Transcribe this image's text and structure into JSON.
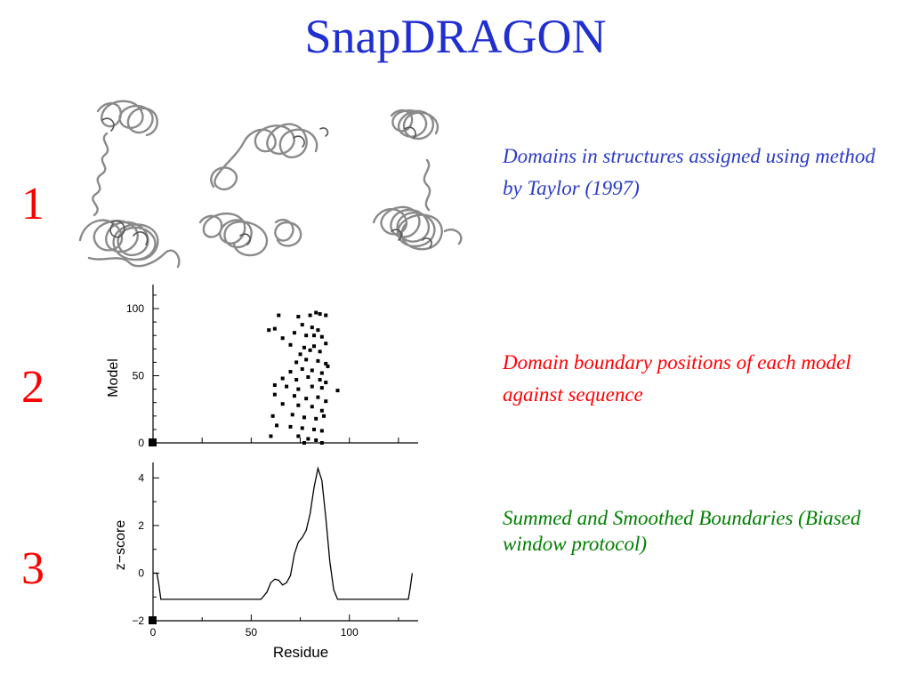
{
  "slide": {
    "title": "SnapDRAGON",
    "panel_numbers": [
      "1",
      "2",
      "3"
    ],
    "captions": {
      "structures": "Domains in structures assigned using method by Taylor (1997)",
      "boundaries": "Domain boundary positions of each model against sequence",
      "smoothed": "Summed and Smoothed Boundaries (Biased window protocol)"
    },
    "colors": {
      "title": "#1f2fd0",
      "numbers": "#ff0000",
      "caption1": "#2a3bc7",
      "caption2": "#ff0000",
      "caption3": "#008000"
    }
  },
  "chart_data": [
    {
      "type": "scatter",
      "title": "",
      "xlabel": "",
      "ylabel": "Model",
      "xlim": [
        0,
        135
      ],
      "ylim": [
        0,
        100
      ],
      "x_ticks": [
        0,
        25,
        50,
        75,
        100,
        125
      ],
      "y_ticks": [
        0,
        50,
        100
      ],
      "y_tick_labels": [
        "0",
        "50",
        "100"
      ],
      "points": [
        [
          59,
          84
        ],
        [
          64,
          95
        ],
        [
          62,
          85
        ],
        [
          74,
          94
        ],
        [
          66,
          78
        ],
        [
          80,
          95
        ],
        [
          83,
          97
        ],
        [
          85,
          96
        ],
        [
          88,
          95
        ],
        [
          76,
          88
        ],
        [
          81,
          86
        ],
        [
          72,
          82
        ],
        [
          78,
          80
        ],
        [
          82,
          80
        ],
        [
          86,
          79
        ],
        [
          84,
          84
        ],
        [
          70,
          73
        ],
        [
          77,
          71
        ],
        [
          82,
          72
        ],
        [
          88,
          74
        ],
        [
          75,
          66
        ],
        [
          80,
          69
        ],
        [
          85,
          68
        ],
        [
          73,
          60
        ],
        [
          78,
          62
        ],
        [
          84,
          61
        ],
        [
          88,
          59
        ],
        [
          70,
          53
        ],
        [
          76,
          55
        ],
        [
          81,
          54
        ],
        [
          86,
          52
        ],
        [
          89,
          57
        ],
        [
          66,
          48
        ],
        [
          73,
          47
        ],
        [
          79,
          49
        ],
        [
          85,
          47
        ],
        [
          88,
          45
        ],
        [
          62,
          43
        ],
        [
          68,
          42
        ],
        [
          74,
          40
        ],
        [
          81,
          42
        ],
        [
          86,
          41
        ],
        [
          94,
          39
        ],
        [
          62,
          36
        ],
        [
          72,
          35
        ],
        [
          78,
          33
        ],
        [
          84,
          34
        ],
        [
          88,
          31
        ],
        [
          66,
          29
        ],
        [
          74,
          28
        ],
        [
          81,
          27
        ],
        [
          86,
          24
        ],
        [
          61,
          20
        ],
        [
          71,
          21
        ],
        [
          77,
          19
        ],
        [
          83,
          18
        ],
        [
          87,
          20
        ],
        [
          63,
          13
        ],
        [
          70,
          12
        ],
        [
          76,
          11
        ],
        [
          82,
          10
        ],
        [
          86,
          9
        ],
        [
          60,
          5
        ],
        [
          74,
          5
        ],
        [
          79,
          3
        ],
        [
          83,
          2
        ],
        [
          77,
          0
        ],
        [
          86,
          0
        ]
      ]
    },
    {
      "type": "line",
      "title": "",
      "xlabel": "Residue",
      "ylabel": "z−score",
      "xlim": [
        0,
        135
      ],
      "ylim": [
        -2,
        4.5
      ],
      "x_ticks": [
        0,
        50,
        100
      ],
      "x_tick_labels": [
        "0",
        "50",
        "100"
      ],
      "y_ticks": [
        -2,
        0,
        2,
        4
      ],
      "y_tick_labels": [
        "−2",
        "0",
        "2",
        "4"
      ],
      "series": [
        {
          "x": [
            0,
            1,
            2,
            3,
            4,
            55,
            58,
            60,
            62,
            64,
            66,
            68,
            70,
            72,
            74,
            76,
            78,
            80,
            82,
            84,
            86,
            88,
            90,
            92,
            94,
            97,
            130,
            131,
            132
          ],
          "y": [
            0,
            0,
            0,
            -0.5,
            -1.1,
            -1.1,
            -0.8,
            -0.4,
            -0.25,
            -0.3,
            -0.5,
            -0.4,
            -0.1,
            0.8,
            1.3,
            1.5,
            1.8,
            2.5,
            3.6,
            4.4,
            3.9,
            2.3,
            0.5,
            -0.7,
            -1.1,
            -1.1,
            -1.1,
            -0.6,
            0
          ]
        }
      ]
    }
  ]
}
